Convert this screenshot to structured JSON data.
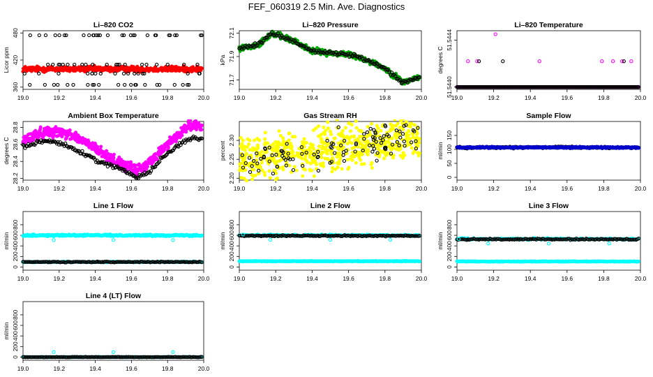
{
  "figure": {
    "title": "FEF_060319  2.5 Min. Ave. Diagnostics"
  },
  "chart_data": [
    {
      "id": "co2",
      "type": "scatter",
      "title": "Li–820 CO2",
      "ylabel": "Licor ppm",
      "xlim": [
        19.0,
        20.0
      ],
      "ylim": [
        355,
        485
      ],
      "xticks": [
        19.0,
        19.2,
        19.4,
        19.6,
        19.8,
        20.0
      ],
      "xticklabels": [
        "19.0",
        "19.2",
        "19.4",
        "19.6",
        "19.8",
        "20.0"
      ],
      "yticks": [
        360,
        420,
        480
      ],
      "yticklabels": [
        "360",
        "420",
        "480"
      ],
      "series": [
        {
          "color": "#ff0000",
          "shape": "dot",
          "pattern": "band",
          "y": 400,
          "spread": 3,
          "n": 480
        },
        {
          "color": "#000000",
          "shape": "ring",
          "pattern": "discrete",
          "levels": [
            365,
            390,
            410,
            475
          ],
          "n": 90
        }
      ]
    },
    {
      "id": "pressure",
      "type": "scatter",
      "title": "Li–820 Pressure",
      "ylabel": "kPa",
      "xlim": [
        19.0,
        20.0
      ],
      "ylim": [
        71.62,
        72.12
      ],
      "xticks": [
        19.0,
        19.2,
        19.4,
        19.6,
        19.8,
        20.0
      ],
      "xticklabels": [
        "19.0",
        "19.2",
        "19.4",
        "19.6",
        "19.8",
        "20.0"
      ],
      "yticks": [
        71.7,
        71.9,
        72.1
      ],
      "yticklabels": [
        "71.7",
        "71.9",
        "72.1"
      ],
      "series": [
        {
          "color": "#00aa00",
          "shape": "dot",
          "pattern": "curve",
          "x": [
            19.0,
            19.1,
            19.18,
            19.3,
            19.4,
            19.5,
            19.6,
            19.7,
            19.8,
            19.9,
            19.98
          ],
          "y": [
            71.97,
            72.0,
            72.1,
            72.03,
            71.95,
            71.93,
            71.92,
            71.87,
            71.8,
            71.68,
            71.72
          ],
          "spread": 0.012,
          "n": 420
        },
        {
          "color": "#000000",
          "shape": "ring",
          "pattern": "curve",
          "x": [
            19.0,
            19.1,
            19.18,
            19.3,
            19.4,
            19.5,
            19.6,
            19.7,
            19.8,
            19.9,
            19.98
          ],
          "y": [
            71.97,
            72.0,
            72.1,
            72.03,
            71.95,
            71.93,
            71.92,
            71.87,
            71.8,
            71.68,
            71.72
          ],
          "spread": 0.008,
          "n": 150
        }
      ]
    },
    {
      "id": "temperature",
      "type": "scatter",
      "title": "Li–820 Temperature",
      "ylabel": "degrees C",
      "xlim": [
        19.0,
        20.0
      ],
      "ylim": [
        51.54398,
        51.54448
      ],
      "xticks": [
        19.0,
        19.2,
        19.4,
        19.6,
        19.8,
        20.0
      ],
      "xticklabels": [
        "19.0",
        "19.2",
        "19.4",
        "19.6",
        "19.8",
        "20.0"
      ],
      "yticks": [
        51.544,
        51.5444
      ],
      "yticklabels": [
        "51.5440",
        "51.5444"
      ],
      "series": [
        {
          "color": "#ff00ff",
          "shape": "dot",
          "pattern": "band",
          "y": 51.544,
          "spread": 0.0,
          "n": 260
        },
        {
          "color": "#000000",
          "shape": "ring",
          "pattern": "band",
          "y": 51.544,
          "spread": 0.0,
          "n": 200
        },
        {
          "color": "#ff00ff",
          "shape": "ring",
          "pattern": "points",
          "x": [
            19.06,
            19.11,
            19.45,
            19.79,
            19.85,
            19.9,
            19.95
          ],
          "y": [
            51.54422,
            51.54422,
            51.54422,
            51.54422,
            51.54422,
            51.54422,
            51.54422
          ]
        },
        {
          "color": "#ff00ff",
          "shape": "ring",
          "pattern": "points",
          "x": [
            19.21
          ],
          "y": [
            51.54445
          ]
        },
        {
          "color": "#000000",
          "shape": "ring",
          "pattern": "points",
          "x": [
            19.12,
            19.25,
            19.91
          ],
          "y": [
            51.54422,
            51.54422,
            51.54422
          ]
        }
      ]
    },
    {
      "id": "ambient",
      "type": "scatter",
      "title": "Ambient Box Temperature",
      "ylabel": "degrees C",
      "xlim": [
        19.0,
        20.0
      ],
      "ylim": [
        28.18,
        28.87
      ],
      "xticks": [
        19.0,
        19.2,
        19.4,
        19.6,
        19.8,
        20.0
      ],
      "xticklabels": [
        "19.0",
        "19.2",
        "19.4",
        "19.6",
        "19.8",
        "20.0"
      ],
      "yticks": [
        28.2,
        28.4,
        28.6,
        28.8
      ],
      "yticklabels": [
        "28.2",
        "28.4",
        "28.6",
        "28.8"
      ],
      "series": [
        {
          "color": "#ff00ff",
          "shape": "dot",
          "pattern": "curve",
          "x": [
            19.0,
            19.08,
            19.15,
            19.25,
            19.35,
            19.45,
            19.55,
            19.62,
            19.68,
            19.75,
            19.85,
            19.92,
            19.98
          ],
          "y": [
            28.64,
            28.72,
            28.76,
            28.73,
            28.62,
            28.48,
            28.36,
            28.3,
            28.34,
            28.5,
            28.7,
            28.83,
            28.8
          ],
          "spread": 0.03,
          "n": 520
        },
        {
          "color": "#000000",
          "shape": "ring",
          "pattern": "curve",
          "x": [
            19.0,
            19.08,
            19.15,
            19.25,
            19.35,
            19.45,
            19.55,
            19.63,
            19.7,
            19.78,
            19.88,
            19.95,
            19.98
          ],
          "y": [
            28.58,
            28.62,
            28.65,
            28.58,
            28.47,
            28.38,
            28.3,
            28.22,
            28.28,
            28.46,
            28.63,
            28.68,
            28.67
          ],
          "spread": 0.012,
          "n": 170
        }
      ]
    },
    {
      "id": "rh",
      "type": "scatter",
      "title": "Gas Stream RH",
      "ylabel": "percent",
      "xlim": [
        19.0,
        20.0
      ],
      "ylim": [
        2.195,
        2.35
      ],
      "xticks": [
        19.0,
        19.2,
        19.4,
        19.6,
        19.8,
        20.0
      ],
      "xticklabels": [
        "19.0",
        "19.2",
        "19.4",
        "19.6",
        "19.8",
        "20.0"
      ],
      "yticks": [
        2.2,
        2.25,
        2.3
      ],
      "yticklabels": [
        "2.20",
        "2.25",
        "2.30"
      ],
      "series": [
        {
          "color": "#ffff00",
          "shape": "dot",
          "pattern": "trend",
          "y0": 2.245,
          "y1": 2.31,
          "spread": 0.028,
          "n": 650
        },
        {
          "color": "#000000",
          "shape": "ring",
          "pattern": "trend",
          "y0": 2.245,
          "y1": 2.31,
          "spread": 0.022,
          "n": 110
        }
      ]
    },
    {
      "id": "sample",
      "type": "scatter",
      "title": "Sample Flow",
      "ylabel": "ml/min",
      "xlim": [
        19.0,
        20.0
      ],
      "ylim": [
        -10,
        200
      ],
      "xticks": [
        19.0,
        19.2,
        19.4,
        19.6,
        19.8,
        20.0
      ],
      "xticklabels": [
        "19.0",
        "19.2",
        "19.4",
        "19.6",
        "19.8",
        "20.0"
      ],
      "yticks": [
        0,
        50,
        100,
        150
      ],
      "yticklabels": [
        "0",
        "50",
        "100",
        "150"
      ],
      "series": [
        {
          "color": "#000000",
          "shape": "ring",
          "pattern": "band",
          "y": 107,
          "spread": 1.5,
          "n": 200
        },
        {
          "color": "#0000cc",
          "shape": "dot",
          "pattern": "band",
          "y": 107,
          "spread": 1.2,
          "n": 400
        }
      ]
    },
    {
      "id": "line1",
      "type": "scatter",
      "title": "Line 1 Flow",
      "ylabel": "ml/min",
      "xlim": [
        19.0,
        20.0
      ],
      "ylim": [
        -60,
        1050
      ],
      "xticks": [
        19.0,
        19.2,
        19.4,
        19.6,
        19.8,
        20.0
      ],
      "xticklabels": [
        "19.0",
        "19.2",
        "19.4",
        "19.6",
        "19.8",
        "20.0"
      ],
      "yticks": [
        0,
        200,
        400,
        600,
        800
      ],
      "yticklabels": [
        "0",
        "200",
        "400",
        "600",
        "800"
      ],
      "series": [
        {
          "color": "#00ffff",
          "shape": "dot",
          "pattern": "band",
          "y": 600,
          "spread": 8,
          "n": 420
        },
        {
          "color": "#00ffff",
          "shape": "ring",
          "pattern": "points",
          "x": [
            19.17,
            19.5,
            19.83
          ],
          "y": [
            510,
            510,
            510
          ]
        },
        {
          "color": "#00ffff",
          "shape": "dot",
          "pattern": "band",
          "y": 95,
          "spread": 4,
          "n": 220
        },
        {
          "color": "#000000",
          "shape": "ring",
          "pattern": "band",
          "y": 95,
          "spread": 4,
          "n": 150
        }
      ]
    },
    {
      "id": "line2",
      "type": "scatter",
      "title": "Line 2 Flow",
      "ylabel": "ml/min",
      "xlim": [
        19.0,
        20.0
      ],
      "ylim": [
        -60,
        1050
      ],
      "xticks": [
        19.0,
        19.2,
        19.4,
        19.6,
        19.8,
        20.0
      ],
      "xticklabels": [
        "19.0",
        "19.2",
        "19.4",
        "19.6",
        "19.8",
        "20.0"
      ],
      "yticks": [
        0,
        200,
        400,
        600,
        800
      ],
      "yticklabels": [
        "0",
        "200",
        "400",
        "600",
        "800"
      ],
      "series": [
        {
          "color": "#00ffff",
          "shape": "dot",
          "pattern": "band",
          "y": 600,
          "spread": 8,
          "n": 220
        },
        {
          "color": "#000000",
          "shape": "ring",
          "pattern": "band",
          "y": 592,
          "spread": 6,
          "n": 150
        },
        {
          "color": "#00ffff",
          "shape": "ring",
          "pattern": "points",
          "x": [
            19.02,
            19.17,
            19.5,
            19.83
          ],
          "y": [
            615,
            515,
            515,
            515
          ]
        },
        {
          "color": "#00ffff",
          "shape": "dot",
          "pattern": "band",
          "y": 110,
          "spread": 3,
          "n": 420
        }
      ]
    },
    {
      "id": "line3",
      "type": "scatter",
      "title": "Line 3 Flow",
      "ylabel": "ml/min",
      "xlim": [
        19.0,
        20.0
      ],
      "ylim": [
        -60,
        1050
      ],
      "xticks": [
        19.0,
        19.2,
        19.4,
        19.6,
        19.8,
        20.0
      ],
      "xticklabels": [
        "19.0",
        "19.2",
        "19.4",
        "19.6",
        "19.8",
        "20.0"
      ],
      "yticks": [
        0,
        200,
        400,
        600,
        800
      ],
      "yticklabels": [
        "0",
        "200",
        "400",
        "600",
        "800"
      ],
      "series": [
        {
          "color": "#00ffff",
          "shape": "dot",
          "pattern": "band",
          "y": 530,
          "spread": 8,
          "n": 220
        },
        {
          "color": "#000000",
          "shape": "ring",
          "pattern": "band",
          "y": 525,
          "spread": 6,
          "n": 150
        },
        {
          "color": "#00ffff",
          "shape": "ring",
          "pattern": "points",
          "x": [
            19.01,
            19.17,
            19.5,
            19.83
          ],
          "y": [
            530,
            445,
            445,
            445
          ]
        },
        {
          "color": "#00ffff",
          "shape": "dot",
          "pattern": "band",
          "y": 105,
          "spread": 3,
          "n": 420
        }
      ]
    },
    {
      "id": "line4",
      "type": "scatter",
      "title": "Line 4 (LT) Flow",
      "ylabel": "ml/min",
      "xlim": [
        19.0,
        20.0
      ],
      "ylim": [
        -60,
        1050
      ],
      "xticks": [
        19.0,
        19.2,
        19.4,
        19.6,
        19.8,
        20.0
      ],
      "xticklabels": [
        "19.0",
        "19.2",
        "19.4",
        "19.6",
        "19.8",
        "20.0"
      ],
      "yticks": [
        0,
        200,
        400,
        600,
        800
      ],
      "yticklabels": [
        "0",
        "200",
        "400",
        "600",
        "800"
      ],
      "series": [
        {
          "color": "#00ffff",
          "shape": "dot",
          "pattern": "band",
          "y": 0,
          "spread": 2,
          "n": 250
        },
        {
          "color": "#000000",
          "shape": "ring",
          "pattern": "band",
          "y": 0,
          "spread": 2,
          "n": 150
        },
        {
          "color": "#00ffff",
          "shape": "ring",
          "pattern": "points",
          "x": [
            19.17,
            19.5,
            19.83
          ],
          "y": [
            95,
            95,
            95
          ]
        }
      ]
    }
  ]
}
